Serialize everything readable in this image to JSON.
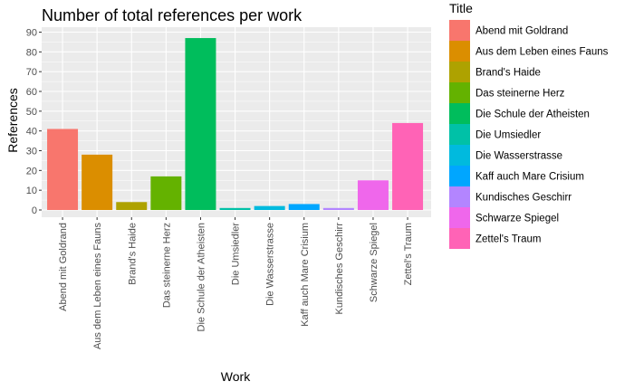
{
  "chart_data": {
    "type": "bar",
    "title": "Number of total references per work",
    "xlabel": "Work",
    "ylabel": "References",
    "ylim": [
      0,
      90
    ],
    "yticks": [
      0,
      10,
      20,
      30,
      40,
      50,
      60,
      70,
      80,
      90
    ],
    "grid": true,
    "legend_title": "Title",
    "legend_position": "right",
    "categories": [
      "Abend mit Goldrand",
      "Aus dem Leben eines Fauns",
      "Brand's Haide",
      "Das steinerne Herz",
      "Die Schule der Atheisten",
      "Die Umsiedler",
      "Die Wasserstrasse",
      "Kaff auch Mare Crisium",
      "Kundisches Geschirr",
      "Schwarze Spiegel",
      "Zettel's Traum"
    ],
    "values": [
      41,
      28,
      4,
      17,
      87,
      1,
      2,
      3,
      1,
      15,
      44
    ],
    "colors": [
      "#F8766D",
      "#DB8E00",
      "#AEA200",
      "#64B200",
      "#00BD5C",
      "#00C1A7",
      "#00BADE",
      "#00A6FF",
      "#B385FF",
      "#EF67EB",
      "#FF63B6"
    ]
  },
  "style": {
    "panel_background": "#EBEBEB",
    "grid_color": "#FFFFFF"
  }
}
